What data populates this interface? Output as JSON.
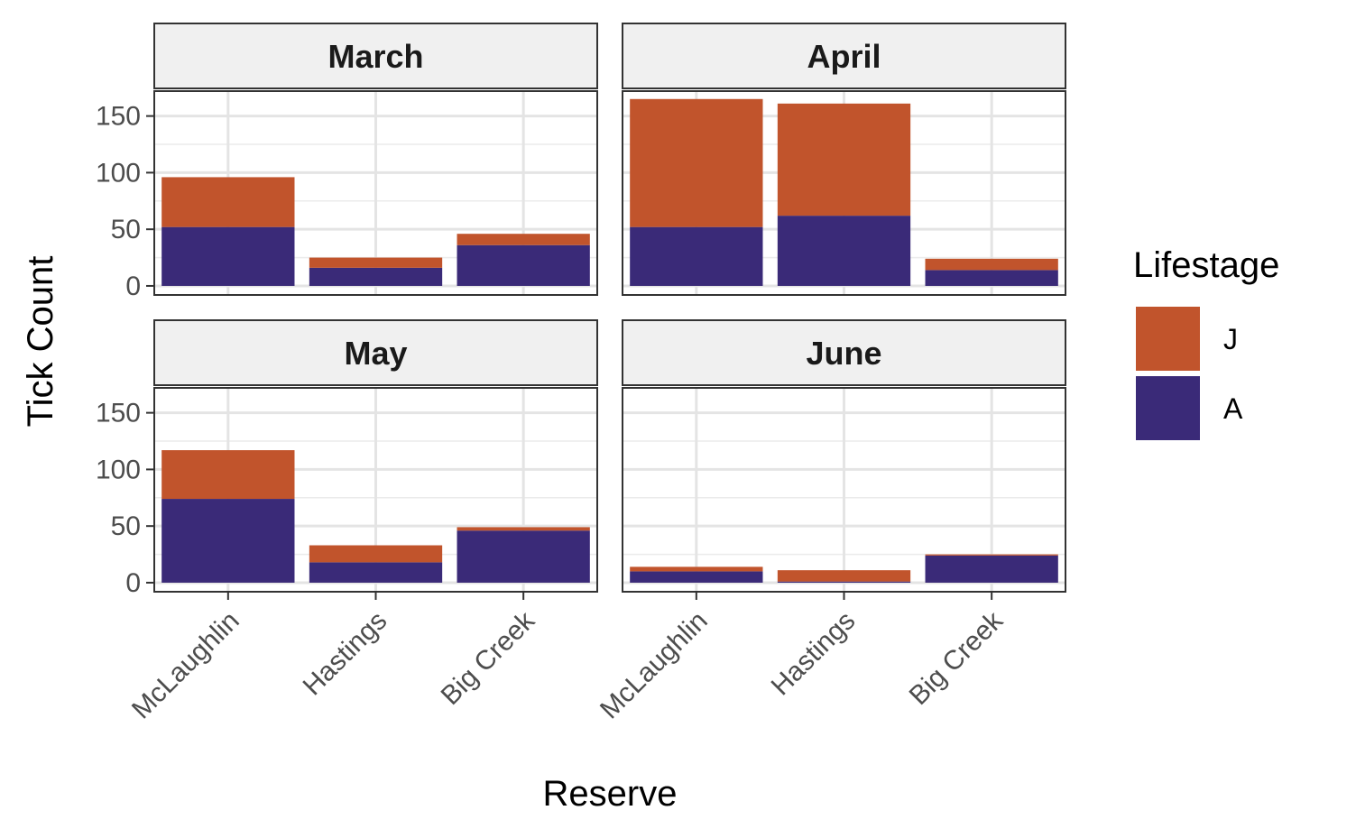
{
  "chart_data": {
    "type": "bar",
    "stacked": true,
    "xlabel": "Reserve",
    "ylabel": "Tick Count",
    "ylim": [
      -8,
      172
    ],
    "yticks": [
      0,
      50,
      100,
      150
    ],
    "categories": [
      "McLaughlin",
      "Hastings",
      "Big Creek"
    ],
    "legend": {
      "title": "Lifestage",
      "position": "right",
      "items": [
        {
          "name": "J",
          "color": "#c1542c"
        },
        {
          "name": "A",
          "color": "#3a2a78"
        }
      ]
    },
    "grid": true,
    "facets": [
      {
        "title": "March",
        "series": [
          {
            "name": "A",
            "values": [
              52,
              16,
              36
            ]
          },
          {
            "name": "J",
            "values": [
              44,
              9,
              10
            ]
          }
        ]
      },
      {
        "title": "April",
        "series": [
          {
            "name": "A",
            "values": [
              52,
              62,
              14
            ]
          },
          {
            "name": "J",
            "values": [
              113,
              99,
              10
            ]
          }
        ]
      },
      {
        "title": "May",
        "series": [
          {
            "name": "A",
            "values": [
              74,
              18,
              46
            ]
          },
          {
            "name": "J",
            "values": [
              43,
              15,
              3
            ]
          }
        ]
      },
      {
        "title": "June",
        "series": [
          {
            "name": "A",
            "values": [
              10,
              1,
              24
            ]
          },
          {
            "name": "J",
            "values": [
              4,
              10,
              1
            ]
          }
        ]
      }
    ]
  }
}
